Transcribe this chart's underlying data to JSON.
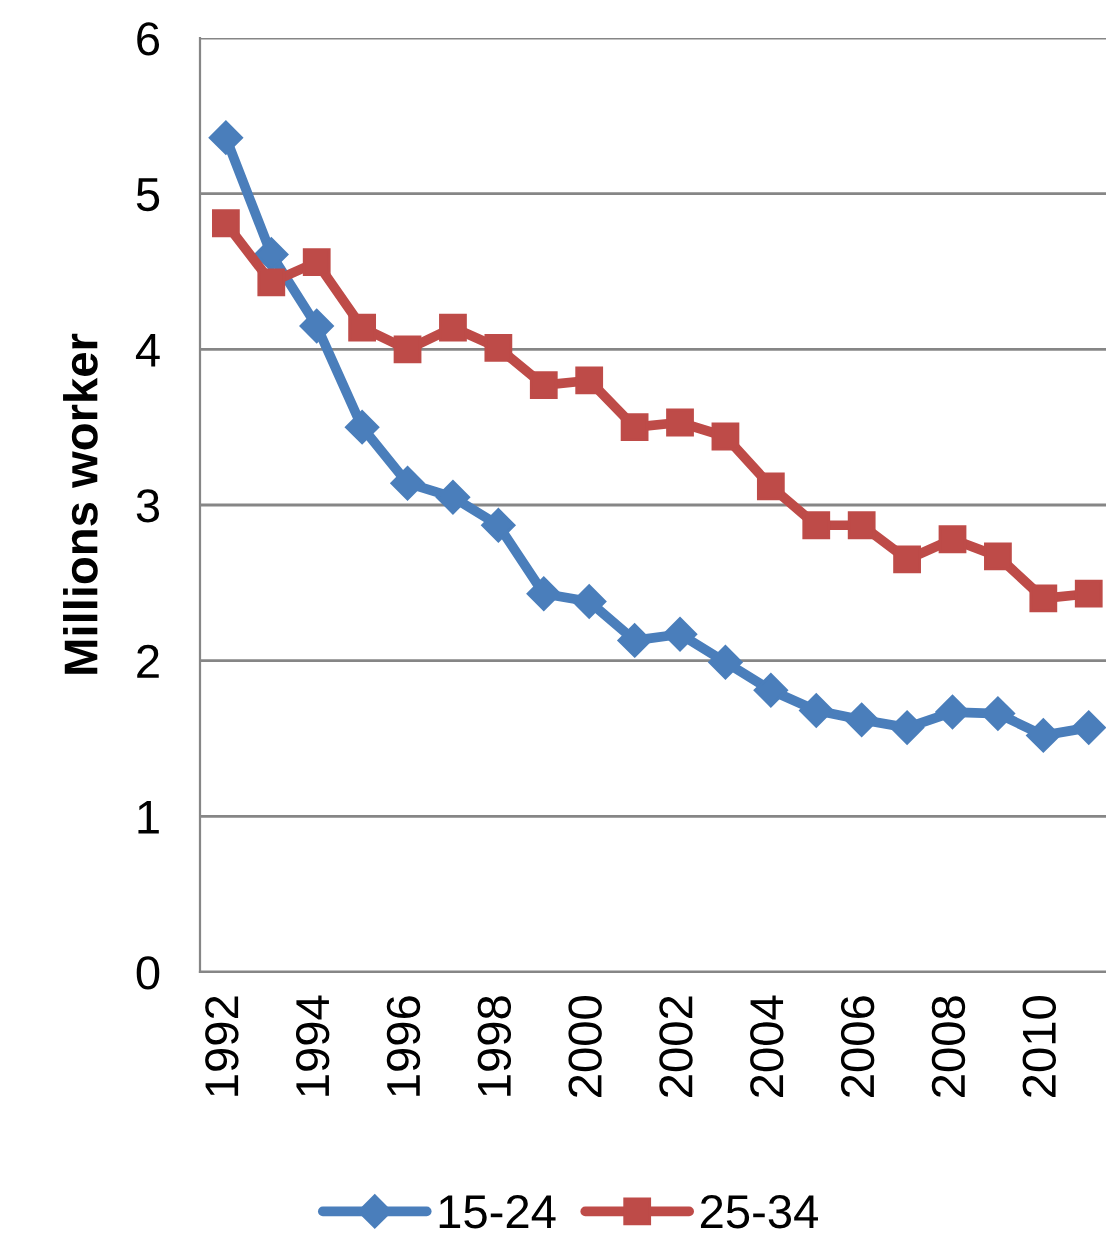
{
  "chart_data": {
    "type": "line",
    "ylabel": "Millions worker",
    "categories": [
      "1992",
      null,
      "1994",
      null,
      "1996",
      null,
      "1998",
      null,
      "2000",
      null,
      "2002",
      null,
      "2004",
      null,
      "2006",
      null,
      "2008",
      null,
      "2010",
      null
    ],
    "series": [
      {
        "name": "15-24",
        "color": "#4a7ebb",
        "marker": "diamond",
        "values": [
          5.36,
          4.61,
          4.15,
          3.5,
          3.14,
          3.05,
          2.87,
          2.43,
          2.38,
          2.13,
          2.17,
          1.99,
          1.81,
          1.68,
          1.62,
          1.57,
          1.67,
          1.66,
          1.52,
          1.57
        ]
      },
      {
        "name": "25-34",
        "color": "#be4b48",
        "marker": "square",
        "values": [
          4.81,
          4.43,
          4.56,
          4.14,
          4.0,
          4.14,
          4.01,
          3.77,
          3.8,
          3.5,
          3.53,
          3.44,
          3.12,
          2.87,
          2.87,
          2.65,
          2.78,
          2.67,
          2.4,
          2.43
        ]
      }
    ],
    "ylim": [
      0,
      6
    ],
    "yticks": [
      0,
      1,
      2,
      3,
      4,
      5,
      6
    ],
    "grid": "y",
    "legend": "bottom",
    "line_style": "solid"
  }
}
